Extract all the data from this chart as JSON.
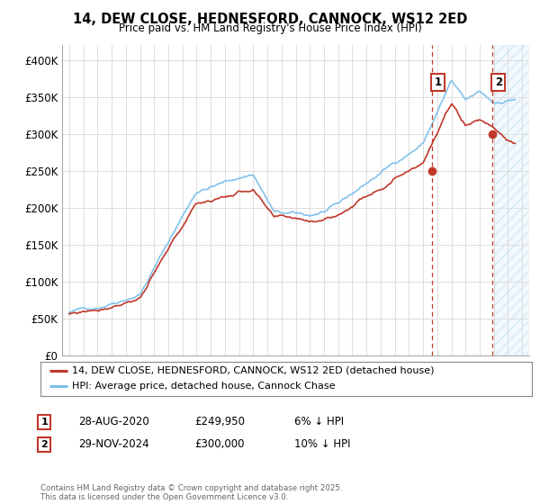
{
  "title": "14, DEW CLOSE, HEDNESFORD, CANNOCK, WS12 2ED",
  "subtitle": "Price paid vs. HM Land Registry's House Price Index (HPI)",
  "legend_line1": "14, DEW CLOSE, HEDNESFORD, CANNOCK, WS12 2ED (detached house)",
  "legend_line2": "HPI: Average price, detached house, Cannock Chase",
  "annotation1_label": "1",
  "annotation1_date": "28-AUG-2020",
  "annotation1_price": "£249,950",
  "annotation1_hpi": "6% ↓ HPI",
  "annotation2_label": "2",
  "annotation2_date": "29-NOV-2024",
  "annotation2_price": "£300,000",
  "annotation2_hpi": "10% ↓ HPI",
  "footer": "Contains HM Land Registry data © Crown copyright and database right 2025.\nThis data is licensed under the Open Government Licence v3.0.",
  "xmin": 1994.5,
  "xmax": 2027.5,
  "ymin": 0,
  "ymax": 420000,
  "yticks": [
    0,
    50000,
    100000,
    150000,
    200000,
    250000,
    300000,
    350000,
    400000
  ],
  "ytick_labels": [
    "£0",
    "£50K",
    "£100K",
    "£150K",
    "£200K",
    "£250K",
    "£300K",
    "£350K",
    "£400K"
  ],
  "xticks": [
    1995,
    1996,
    1997,
    1998,
    1999,
    2000,
    2001,
    2002,
    2003,
    2004,
    2005,
    2006,
    2007,
    2008,
    2009,
    2010,
    2011,
    2012,
    2013,
    2014,
    2015,
    2016,
    2017,
    2018,
    2019,
    2020,
    2021,
    2022,
    2023,
    2024,
    2025,
    2026,
    2027
  ],
  "marker1_x": 2020.65,
  "marker1_y": 249950,
  "marker2_x": 2024.91,
  "marker2_y": 300000,
  "hpi_color": "#7bbfea",
  "price_color": "#c0392b",
  "marker_box_color": "#c0392b",
  "bg_color": "#ffffff",
  "grid_color": "#dddddd",
  "shaded_region_start": 2025.0,
  "shaded_region_end": 2027.5,
  "hpi_seed": 42,
  "price_seed": 77,
  "n_points": 360
}
